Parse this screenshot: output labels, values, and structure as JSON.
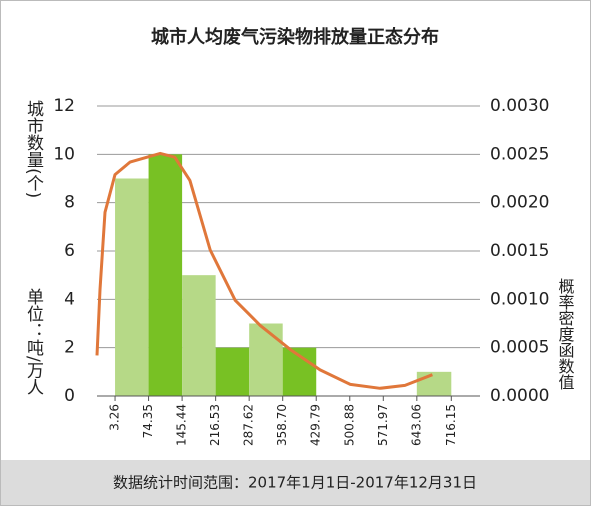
{
  "chart_data": {
    "type": "histogram",
    "title": "城市人均废气污染物排放量正态分布",
    "ylabel": "城市数量(个)",
    "unit": "单位：吨/万人",
    "y2label": "概率密度函数值",
    "footer": "数据统计时间范围：2017年1月1日-2017年12月31日",
    "bins": [
      3.26,
      74.35,
      145.44,
      216.53,
      287.62,
      {
        "value": 358.7,
        "label": "358.70"
      },
      429.79,
      500.88,
      571.97,
      643.06,
      716.15
    ],
    "values": [
      9,
      10,
      5,
      2,
      3,
      2,
      0,
      0,
      0,
      1
    ],
    "colors": [
      "#b6d987",
      "#78c124",
      "#b6d987",
      "#78c124",
      "#b6d987",
      "#78c124",
      "#b6d987",
      "#78c124",
      "#b6d987",
      "#b6d987"
    ],
    "series": [
      {
        "name": "概率密度函数值",
        "color": "#e0773a",
        "axis": "y2",
        "x": [
          -35,
          -28.6,
          -18,
          3.26,
          35,
          99,
          130,
          162,
          205,
          258,
          311,
          375,
          438,
          502,
          565,
          618,
          676
        ],
        "values": [
          0.00042,
          0.0011,
          0.0019,
          0.00229,
          0.00242,
          0.00251,
          0.00247,
          0.00223,
          0.00151,
          0.00099,
          0.00073,
          0.00048,
          0.00027,
          0.00012,
          8e-05,
          0.00011,
          0.00022
        ]
      }
    ],
    "xlim": [
      -35,
      777
    ],
    "ylim": [
      0,
      12
    ],
    "yticks": [
      0,
      2,
      4,
      6,
      8,
      10,
      12
    ],
    "y2lim": [
      0,
      0.003
    ],
    "y2ticks": [
      {
        "value": 0,
        "label": "0.0000"
      },
      {
        "value": 0.0005,
        "label": "0.0005"
      },
      {
        "value": 0.001,
        "label": "0.0010"
      },
      {
        "value": 0.0015,
        "label": "0.0015"
      },
      {
        "value": 0.002,
        "label": "0.0020"
      },
      {
        "value": 0.0025,
        "label": "0.0025"
      },
      {
        "value": 0.003,
        "label": "0.0030"
      }
    ],
    "grid": true
  }
}
